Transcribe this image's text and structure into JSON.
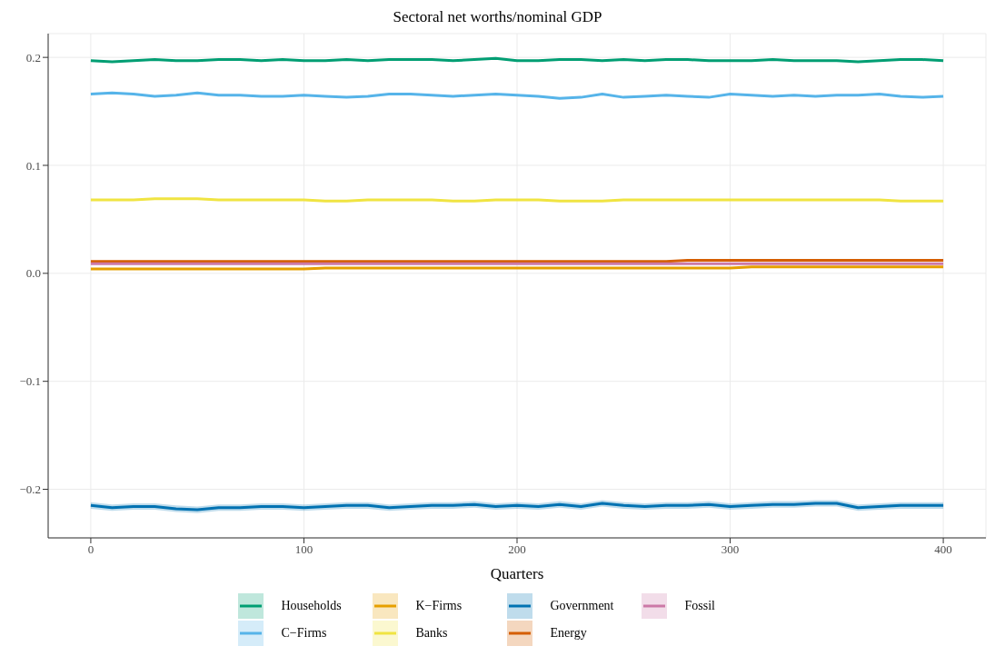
{
  "chart_data": {
    "type": "line",
    "title": "Sectoral net worths/nominal GDP",
    "xlabel": "Quarters",
    "x": [
      0,
      10,
      20,
      30,
      40,
      50,
      60,
      70,
      80,
      90,
      100,
      110,
      120,
      130,
      140,
      150,
      160,
      170,
      180,
      190,
      200,
      210,
      220,
      230,
      240,
      250,
      260,
      270,
      280,
      290,
      300,
      310,
      320,
      330,
      340,
      350,
      360,
      370,
      380,
      390,
      400
    ],
    "series": [
      {
        "name": "Households",
        "color": "#009e73",
        "values": [
          0.197,
          0.196,
          0.197,
          0.198,
          0.197,
          0.197,
          0.198,
          0.198,
          0.197,
          0.198,
          0.197,
          0.197,
          0.198,
          0.197,
          0.198,
          0.198,
          0.198,
          0.197,
          0.198,
          0.199,
          0.197,
          0.197,
          0.198,
          0.198,
          0.197,
          0.198,
          0.197,
          0.198,
          0.198,
          0.197,
          0.197,
          0.197,
          0.198,
          0.197,
          0.197,
          0.197,
          0.196,
          0.197,
          0.198,
          0.198,
          0.197
        ]
      },
      {
        "name": "C−Firms",
        "color": "#56b4e9",
        "values": [
          0.166,
          0.167,
          0.166,
          0.164,
          0.165,
          0.167,
          0.165,
          0.165,
          0.164,
          0.164,
          0.165,
          0.164,
          0.163,
          0.164,
          0.166,
          0.166,
          0.165,
          0.164,
          0.165,
          0.166,
          0.165,
          0.164,
          0.162,
          0.163,
          0.166,
          0.163,
          0.164,
          0.165,
          0.164,
          0.163,
          0.166,
          0.165,
          0.164,
          0.165,
          0.164,
          0.165,
          0.165,
          0.166,
          0.164,
          0.163,
          0.164
        ]
      },
      {
        "name": "K−Firms",
        "color": "#e69f00",
        "values": [
          0.004,
          0.004,
          0.004,
          0.004,
          0.004,
          0.004,
          0.004,
          0.004,
          0.004,
          0.004,
          0.004,
          0.005,
          0.005,
          0.005,
          0.005,
          0.005,
          0.005,
          0.005,
          0.005,
          0.005,
          0.005,
          0.005,
          0.005,
          0.005,
          0.005,
          0.005,
          0.005,
          0.005,
          0.005,
          0.005,
          0.005,
          0.006,
          0.006,
          0.006,
          0.006,
          0.006,
          0.006,
          0.006,
          0.006,
          0.006,
          0.006
        ]
      },
      {
        "name": "Banks",
        "color": "#f0e442",
        "values": [
          0.068,
          0.068,
          0.068,
          0.069,
          0.069,
          0.069,
          0.068,
          0.068,
          0.068,
          0.068,
          0.068,
          0.067,
          0.067,
          0.068,
          0.068,
          0.068,
          0.068,
          0.067,
          0.067,
          0.068,
          0.068,
          0.068,
          0.067,
          0.067,
          0.067,
          0.068,
          0.068,
          0.068,
          0.068,
          0.068,
          0.068,
          0.068,
          0.068,
          0.068,
          0.068,
          0.068,
          0.068,
          0.068,
          0.067,
          0.067,
          0.067
        ]
      },
      {
        "name": "Government",
        "color": "#0072b2",
        "values": [
          -0.215,
          -0.217,
          -0.216,
          -0.216,
          -0.218,
          -0.219,
          -0.217,
          -0.217,
          -0.216,
          -0.216,
          -0.217,
          -0.216,
          -0.215,
          -0.215,
          -0.217,
          -0.216,
          -0.215,
          -0.215,
          -0.214,
          -0.216,
          -0.215,
          -0.216,
          -0.214,
          -0.216,
          -0.213,
          -0.215,
          -0.216,
          -0.215,
          -0.215,
          -0.214,
          -0.216,
          -0.215,
          -0.214,
          -0.214,
          -0.213,
          -0.213,
          -0.217,
          -0.216,
          -0.215,
          -0.215,
          -0.215
        ],
        "lower": [
          -0.218,
          -0.22,
          -0.219,
          -0.219,
          -0.221,
          -0.222,
          -0.22,
          -0.22,
          -0.219,
          -0.219,
          -0.22,
          -0.219,
          -0.218,
          -0.218,
          -0.22,
          -0.219,
          -0.218,
          -0.218,
          -0.217,
          -0.219,
          -0.218,
          -0.219,
          -0.217,
          -0.219,
          -0.216,
          -0.218,
          -0.219,
          -0.218,
          -0.218,
          -0.217,
          -0.219,
          -0.218,
          -0.217,
          -0.217,
          -0.216,
          -0.216,
          -0.22,
          -0.219,
          -0.218,
          -0.218,
          -0.218
        ],
        "upper": [
          -0.212,
          -0.214,
          -0.213,
          -0.213,
          -0.215,
          -0.216,
          -0.214,
          -0.214,
          -0.213,
          -0.213,
          -0.214,
          -0.213,
          -0.212,
          -0.212,
          -0.214,
          -0.213,
          -0.212,
          -0.212,
          -0.211,
          -0.213,
          -0.212,
          -0.213,
          -0.211,
          -0.213,
          -0.21,
          -0.212,
          -0.213,
          -0.212,
          -0.212,
          -0.211,
          -0.213,
          -0.212,
          -0.211,
          -0.211,
          -0.21,
          -0.21,
          -0.214,
          -0.213,
          -0.212,
          -0.212,
          -0.212
        ]
      },
      {
        "name": "Energy",
        "color": "#d55e00",
        "values": [
          0.011,
          0.011,
          0.011,
          0.011,
          0.011,
          0.011,
          0.011,
          0.011,
          0.011,
          0.011,
          0.011,
          0.011,
          0.011,
          0.011,
          0.011,
          0.011,
          0.011,
          0.011,
          0.011,
          0.011,
          0.011,
          0.011,
          0.011,
          0.011,
          0.011,
          0.011,
          0.011,
          0.011,
          0.012,
          0.012,
          0.012,
          0.012,
          0.012,
          0.012,
          0.012,
          0.012,
          0.012,
          0.012,
          0.012,
          0.012,
          0.012
        ]
      },
      {
        "name": "Fossil",
        "color": "#cc79a7",
        "values": [
          0.009,
          0.009,
          0.009,
          0.009,
          0.009,
          0.009,
          0.009,
          0.009,
          0.009,
          0.009,
          0.009,
          0.009,
          0.009,
          0.009,
          0.009,
          0.009,
          0.009,
          0.009,
          0.009,
          0.009,
          0.009,
          0.009,
          0.009,
          0.009,
          0.009,
          0.009,
          0.009,
          0.009,
          0.009,
          0.009,
          0.009,
          0.009,
          0.009,
          0.009,
          0.009,
          0.009,
          0.009,
          0.009,
          0.009,
          0.009,
          0.009
        ]
      }
    ],
    "xlim": [
      -20,
      420
    ],
    "xticks": [
      0,
      100,
      200,
      300,
      400
    ],
    "ylim": [
      -0.245,
      0.222
    ],
    "yticks": [
      {
        "value": -0.2,
        "label": "−0.2"
      },
      {
        "value": -0.1,
        "label": "−0.1"
      },
      {
        "value": 0,
        "label": "0.0"
      },
      {
        "value": 0.1,
        "label": "0.1"
      },
      {
        "value": 0.2,
        "label": "0.2"
      }
    ],
    "grid": true,
    "legend": "bottom",
    "marker": "none",
    "line_style": "solid"
  }
}
